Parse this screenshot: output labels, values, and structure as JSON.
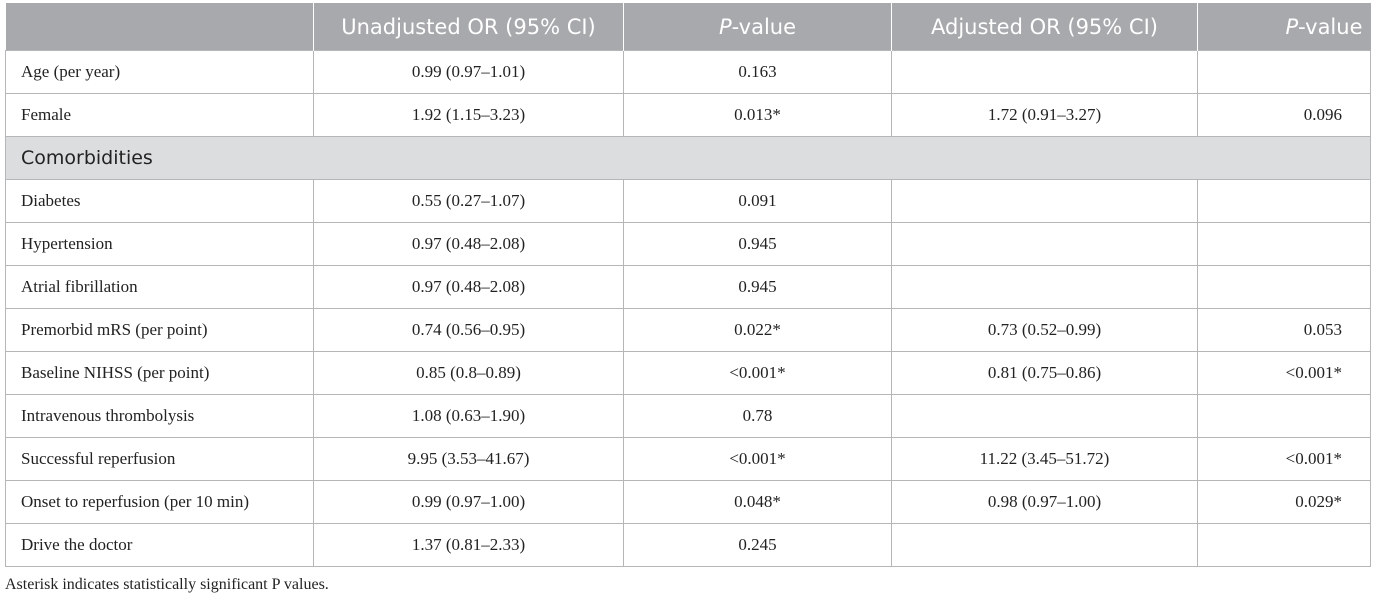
{
  "table": {
    "headers": {
      "col1": "",
      "col2": "Unadjusted OR (95% CI)",
      "col3_italic": "P",
      "col3_rest": "-value",
      "col4": "Adjusted OR (95% CI)",
      "col5_italic": "P",
      "col5_rest": "-value"
    },
    "rows_top": [
      {
        "label": "Age (per year)",
        "unadj_or": "0.99 (0.97–1.01)",
        "unadj_p": "0.163",
        "adj_or": "",
        "adj_p": ""
      },
      {
        "label": "Female",
        "unadj_or": "1.92 (1.15–3.23)",
        "unadj_p": "0.013*",
        "adj_or": "1.72 (0.91–3.27)",
        "adj_p": "0.096"
      }
    ],
    "section_label": "Comorbidities",
    "rows_bottom": [
      {
        "label": "Diabetes",
        "unadj_or": "0.55 (0.27–1.07)",
        "unadj_p": "0.091",
        "adj_or": "",
        "adj_p": ""
      },
      {
        "label": "Hypertension",
        "unadj_or": "0.97 (0.48–2.08)",
        "unadj_p": "0.945",
        "adj_or": "",
        "adj_p": ""
      },
      {
        "label": "Atrial fibrillation",
        "unadj_or": "0.97 (0.48–2.08)",
        "unadj_p": "0.945",
        "adj_or": "",
        "adj_p": ""
      },
      {
        "label": "Premorbid mRS (per point)",
        "unadj_or": "0.74 (0.56–0.95)",
        "unadj_p": "0.022*",
        "adj_or": "0.73 (0.52–0.99)",
        "adj_p": "0.053"
      },
      {
        "label": "Baseline NIHSS (per point)",
        "unadj_or": "0.85 (0.8–0.89)",
        "unadj_p": "<0.001*",
        "adj_or": "0.81 (0.75–0.86)",
        "adj_p": "<0.001*"
      },
      {
        "label": "Intravenous thrombolysis",
        "unadj_or": "1.08 (0.63–1.90)",
        "unadj_p": "0.78",
        "adj_or": "",
        "adj_p": ""
      },
      {
        "label": "Successful reperfusion",
        "unadj_or": "9.95 (3.53–41.67)",
        "unadj_p": "<0.001*",
        "adj_or": "11.22 (3.45–51.72)",
        "adj_p": "<0.001*"
      },
      {
        "label": "Onset to reperfusion (per 10 min)",
        "unadj_or": "0.99 (0.97–1.00)",
        "unadj_p": "0.048*",
        "adj_or": "0.98 (0.97–1.00)",
        "adj_p": "0.029*"
      },
      {
        "label": "Drive the doctor",
        "unadj_or": "1.37 (0.81–2.33)",
        "unadj_p": "0.245",
        "adj_or": "",
        "adj_p": ""
      }
    ]
  },
  "footnote": "Asterisk indicates statistically significant P values.",
  "colors": {
    "header_bg": "#a7a9ac",
    "section_bg": "#dcdddf",
    "border": "#b5b6b8"
  }
}
